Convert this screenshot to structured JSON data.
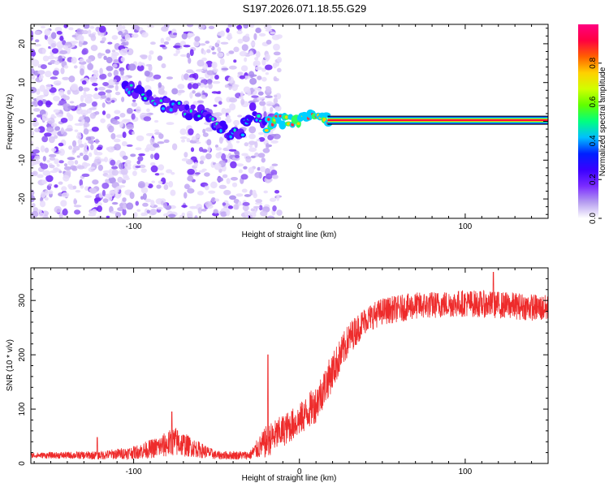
{
  "title": "S197.2026.071.18.55.G29",
  "colors": {
    "snr_line": "#ee2b2b",
    "frame": "#000000",
    "colorbar_stops": [
      "#ffffff",
      "#b59cf0",
      "#7a2bff",
      "#3a00ff",
      "#0020ff",
      "#00bfff",
      "#00ff80",
      "#60ff00",
      "#d0ff00",
      "#ffd000",
      "#ff6000",
      "#ff0040",
      "#ff0080"
    ]
  },
  "chart_data": [
    {
      "type": "heatmap",
      "xlabel": "Height of straight line (km)",
      "ylabel": "Frequency (Hz)",
      "xlim": [
        -162,
        150
      ],
      "ylim": [
        -25,
        25
      ],
      "x_ticks": [
        -100,
        0,
        100
      ],
      "x_tick_labels": [
        "-100",
        "0",
        "100"
      ],
      "y_ticks": [
        -20,
        -10,
        0,
        10,
        20
      ],
      "y_tick_labels": [
        "-20",
        "-10",
        "0",
        "10",
        "20"
      ],
      "colorbar": {
        "label": "Normalized spectral amplitude",
        "range": [
          0,
          1
        ],
        "ticks": [
          0.0,
          0.2,
          0.4,
          0.6,
          0.8
        ],
        "tick_labels": [
          "0.0",
          "0.2",
          "0.4",
          "0.6",
          "0.8"
        ]
      },
      "ridge": {
        "description_points_x": [
          -100,
          -90,
          -80,
          -70,
          -60,
          -50,
          -45,
          -40,
          -35,
          -30,
          -28,
          -25,
          -20,
          -15,
          -10,
          0,
          10,
          20,
          50,
          100,
          150
        ],
        "description_points_f": [
          8,
          6,
          4,
          3,
          2,
          0,
          -2,
          -4,
          -3,
          2,
          3,
          0,
          -1,
          0,
          0.5,
          0.5,
          0.5,
          0.3,
          0.3,
          0.3,
          0.3
        ]
      }
    },
    {
      "type": "line",
      "xlabel": "Height of straight line (km)",
      "ylabel": "SNR (10 * v/v)",
      "xlim": [
        -162,
        150
      ],
      "ylim": [
        0,
        360
      ],
      "x_ticks": [
        -100,
        0,
        100
      ],
      "x_tick_labels": [
        "-100",
        "0",
        "100"
      ],
      "y_ticks": [
        0,
        100,
        200,
        300
      ],
      "y_tick_labels": [
        "0",
        "100",
        "200",
        "300"
      ],
      "series": [
        {
          "name": "SNR",
          "trend_x": [
            -162,
            -120,
            -100,
            -85,
            -75,
            -65,
            -50,
            -30,
            -20,
            -10,
            0,
            10,
            20,
            30,
            40,
            50,
            70,
            100,
            130,
            150
          ],
          "trend_y": [
            15,
            15,
            20,
            30,
            40,
            30,
            15,
            15,
            40,
            60,
            80,
            110,
            170,
            230,
            265,
            280,
            290,
            295,
            290,
            285
          ],
          "noise": [
            5,
            8,
            12,
            20,
            28,
            18,
            8,
            8,
            30,
            30,
            30,
            35,
            35,
            30,
            25,
            25,
            25,
            25,
            25,
            25
          ],
          "spikes": [
            {
              "x": -122,
              "y": 48
            },
            {
              "x": -77,
              "y": 95
            },
            {
              "x": -19,
              "y": 200
            },
            {
              "x": 117,
              "y": 352
            }
          ]
        }
      ]
    }
  ]
}
